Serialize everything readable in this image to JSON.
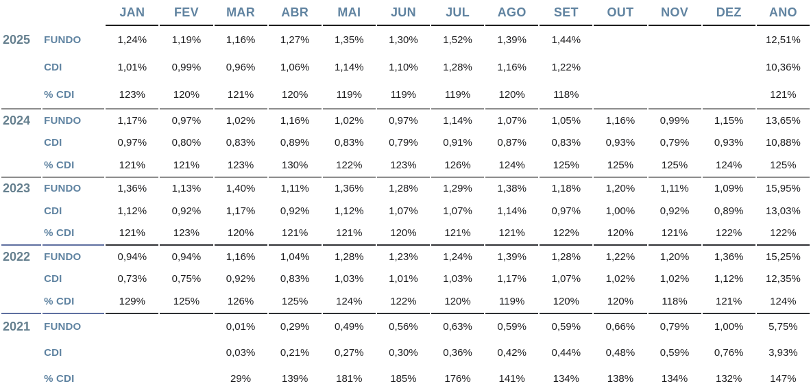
{
  "colors": {
    "month_header_text": "#6083a0",
    "year_text": "#66808f",
    "row_label_text": "#5f83a1",
    "value_text": "#1c1c1e",
    "header_underline": "#1c1c1c",
    "separator_gray": "#8c8c8c",
    "separator_dark": "#2e3033",
    "separator_blue": "#5e6fa0"
  },
  "chart_data": {
    "type": "table",
    "columns": [
      "JAN",
      "FEV",
      "MAR",
      "ABR",
      "MAI",
      "JUN",
      "JUL",
      "AGO",
      "SET",
      "OUT",
      "NOV",
      "DEZ",
      "ANO"
    ],
    "row_labels": [
      "FUNDO",
      "CDI",
      "% CDI"
    ],
    "groups": [
      {
        "year": "2025",
        "rows": [
          {
            "label": "FUNDO",
            "values": [
              "1,24%",
              "1,19%",
              "1,16%",
              "1,27%",
              "1,35%",
              "1,30%",
              "1,52%",
              "1,39%",
              "1,44%",
              "",
              "",
              "",
              "12,51%"
            ]
          },
          {
            "label": "CDI",
            "values": [
              "1,01%",
              "0,99%",
              "0,96%",
              "1,06%",
              "1,14%",
              "1,10%",
              "1,28%",
              "1,16%",
              "1,22%",
              "",
              "",
              "",
              "10,36%"
            ]
          },
          {
            "label": "% CDI",
            "values": [
              "123%",
              "120%",
              "121%",
              "120%",
              "119%",
              "119%",
              "119%",
              "120%",
              "118%",
              "",
              "",
              "",
              "121%"
            ]
          }
        ]
      },
      {
        "year": "2024",
        "rows": [
          {
            "label": "FUNDO",
            "values": [
              "1,17%",
              "0,97%",
              "1,02%",
              "1,16%",
              "1,02%",
              "0,97%",
              "1,14%",
              "1,07%",
              "1,05%",
              "1,16%",
              "0,99%",
              "1,15%",
              "13,65%"
            ]
          },
          {
            "label": "CDI",
            "values": [
              "0,97%",
              "0,80%",
              "0,83%",
              "0,89%",
              "0,83%",
              "0,79%",
              "0,91%",
              "0,87%",
              "0,83%",
              "0,93%",
              "0,79%",
              "0,93%",
              "10,88%"
            ]
          },
          {
            "label": "% CDI",
            "values": [
              "121%",
              "121%",
              "123%",
              "130%",
              "122%",
              "123%",
              "126%",
              "124%",
              "125%",
              "125%",
              "125%",
              "124%",
              "125%"
            ]
          }
        ]
      },
      {
        "year": "2023",
        "rows": [
          {
            "label": "FUNDO",
            "values": [
              "1,36%",
              "1,13%",
              "1,40%",
              "1,11%",
              "1,36%",
              "1,28%",
              "1,29%",
              "1,38%",
              "1,18%",
              "1,20%",
              "1,11%",
              "1,09%",
              "15,95%"
            ]
          },
          {
            "label": "CDI",
            "values": [
              "1,12%",
              "0,92%",
              "1,17%",
              "0,92%",
              "1,12%",
              "1,07%",
              "1,07%",
              "1,14%",
              "0,97%",
              "1,00%",
              "0,92%",
              "0,89%",
              "13,03%"
            ]
          },
          {
            "label": "% CDI",
            "values": [
              "121%",
              "123%",
              "120%",
              "121%",
              "121%",
              "120%",
              "121%",
              "121%",
              "122%",
              "120%",
              "121%",
              "122%",
              "122%"
            ]
          }
        ]
      },
      {
        "year": "2022",
        "rows": [
          {
            "label": "FUNDO",
            "values": [
              "0,94%",
              "0,94%",
              "1,16%",
              "1,04%",
              "1,28%",
              "1,23%",
              "1,24%",
              "1,39%",
              "1,28%",
              "1,22%",
              "1,20%",
              "1,36%",
              "15,25%"
            ]
          },
          {
            "label": "CDI",
            "values": [
              "0,73%",
              "0,75%",
              "0,92%",
              "0,83%",
              "1,03%",
              "1,01%",
              "1,03%",
              "1,17%",
              "1,07%",
              "1,02%",
              "1,02%",
              "1,12%",
              "12,35%"
            ]
          },
          {
            "label": "% CDI",
            "values": [
              "129%",
              "125%",
              "126%",
              "125%",
              "124%",
              "122%",
              "120%",
              "119%",
              "120%",
              "120%",
              "118%",
              "121%",
              "124%"
            ]
          }
        ]
      },
      {
        "year": "2021",
        "rows": [
          {
            "label": "FUNDO",
            "values": [
              "",
              "",
              "0,01%",
              "0,29%",
              "0,49%",
              "0,56%",
              "0,63%",
              "0,59%",
              "0,59%",
              "0,66%",
              "0,79%",
              "1,00%",
              "5,75%"
            ]
          },
          {
            "label": "CDI",
            "values": [
              "",
              "",
              "0,03%",
              "0,21%",
              "0,27%",
              "0,30%",
              "0,36%",
              "0,42%",
              "0,44%",
              "0,48%",
              "0,59%",
              "0,76%",
              "3,93%"
            ]
          },
          {
            "label": "% CDI",
            "values": [
              "",
              "",
              "29%",
              "139%",
              "181%",
              "185%",
              "176%",
              "141%",
              "134%",
              "138%",
              "134%",
              "132%",
              "147%"
            ]
          }
        ]
      }
    ]
  }
}
